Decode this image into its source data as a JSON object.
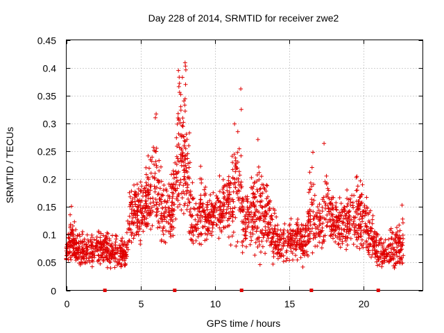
{
  "chart_data": {
    "type": "scatter",
    "title": "Day 228 of 2014, SRMTID for receiver zwe2",
    "xlabel": "GPS time / hours",
    "ylabel": "SRMTID / TECUs",
    "xlim": [
      0,
      24
    ],
    "ylim": [
      0,
      0.45
    ],
    "grid": true,
    "xticks": [
      0,
      5,
      10,
      15,
      20
    ],
    "yticks": [
      0,
      0.05,
      0.1,
      0.15,
      0.2,
      0.25,
      0.3,
      0.35,
      0.4,
      0.45
    ],
    "x_tick_labels": [
      "0",
      "5",
      "10",
      "15",
      "20"
    ],
    "y_tick_labels": [
      "0",
      "0.05",
      "0.1",
      "0.15",
      "0.2",
      "0.25",
      "0.3",
      "0.35",
      "0.4",
      "0.45"
    ],
    "marker_color": "#e00000",
    "marker": "plus",
    "gap_markers": [
      2.6,
      7.3,
      11.8,
      16.5,
      21.0
    ],
    "envelope": [
      [
        0.0,
        0.04,
        0.09
      ],
      [
        0.3,
        0.05,
        0.15
      ],
      [
        0.6,
        0.04,
        0.13
      ],
      [
        1.0,
        0.03,
        0.11
      ],
      [
        1.5,
        0.03,
        0.12
      ],
      [
        2.0,
        0.04,
        0.11
      ],
      [
        2.5,
        0.04,
        0.12
      ],
      [
        3.0,
        0.03,
        0.12
      ],
      [
        3.5,
        0.03,
        0.11
      ],
      [
        4.0,
        0.03,
        0.1
      ],
      [
        4.3,
        0.06,
        0.22
      ],
      [
        4.8,
        0.07,
        0.23
      ],
      [
        5.3,
        0.07,
        0.25
      ],
      [
        5.8,
        0.08,
        0.31
      ],
      [
        6.3,
        0.07,
        0.27
      ],
      [
        6.8,
        0.07,
        0.2
      ],
      [
        7.2,
        0.08,
        0.25
      ],
      [
        7.5,
        0.09,
        0.4
      ],
      [
        8.0,
        0.1,
        0.41
      ],
      [
        8.5,
        0.03,
        0.24
      ],
      [
        9.0,
        0.05,
        0.26
      ],
      [
        9.5,
        0.08,
        0.19
      ],
      [
        10.0,
        0.09,
        0.21
      ],
      [
        10.5,
        0.08,
        0.23
      ],
      [
        11.0,
        0.07,
        0.25
      ],
      [
        11.5,
        0.06,
        0.36
      ],
      [
        12.0,
        0.06,
        0.18
      ],
      [
        12.5,
        0.05,
        0.23
      ],
      [
        13.0,
        0.04,
        0.27
      ],
      [
        13.5,
        0.05,
        0.23
      ],
      [
        14.0,
        0.04,
        0.16
      ],
      [
        14.5,
        0.04,
        0.13
      ],
      [
        15.0,
        0.05,
        0.14
      ],
      [
        15.5,
        0.04,
        0.16
      ],
      [
        16.0,
        0.04,
        0.14
      ],
      [
        16.5,
        0.05,
        0.25
      ],
      [
        17.0,
        0.06,
        0.18
      ],
      [
        17.5,
        0.07,
        0.26
      ],
      [
        18.0,
        0.07,
        0.2
      ],
      [
        18.5,
        0.06,
        0.18
      ],
      [
        19.0,
        0.06,
        0.2
      ],
      [
        19.5,
        0.06,
        0.22
      ],
      [
        20.0,
        0.05,
        0.24
      ],
      [
        20.5,
        0.04,
        0.15
      ],
      [
        21.0,
        0.03,
        0.12
      ],
      [
        21.5,
        0.04,
        0.1
      ],
      [
        22.0,
        0.03,
        0.13
      ],
      [
        22.7,
        0.02,
        0.15
      ]
    ],
    "peaks": [
      [
        0.35,
        0.151
      ],
      [
        6.0,
        0.31
      ],
      [
        6.05,
        0.317
      ],
      [
        7.55,
        0.395
      ],
      [
        7.6,
        0.383
      ],
      [
        7.58,
        0.366
      ],
      [
        7.62,
        0.372
      ],
      [
        8.0,
        0.409
      ],
      [
        8.02,
        0.403
      ],
      [
        8.05,
        0.396
      ],
      [
        8.03,
        0.37
      ],
      [
        11.75,
        0.362
      ],
      [
        11.78,
        0.325
      ],
      [
        12.9,
        0.271
      ],
      [
        16.6,
        0.248
      ],
      [
        17.35,
        0.264
      ],
      [
        22.6,
        0.153
      ]
    ],
    "point_count": 2300
  }
}
